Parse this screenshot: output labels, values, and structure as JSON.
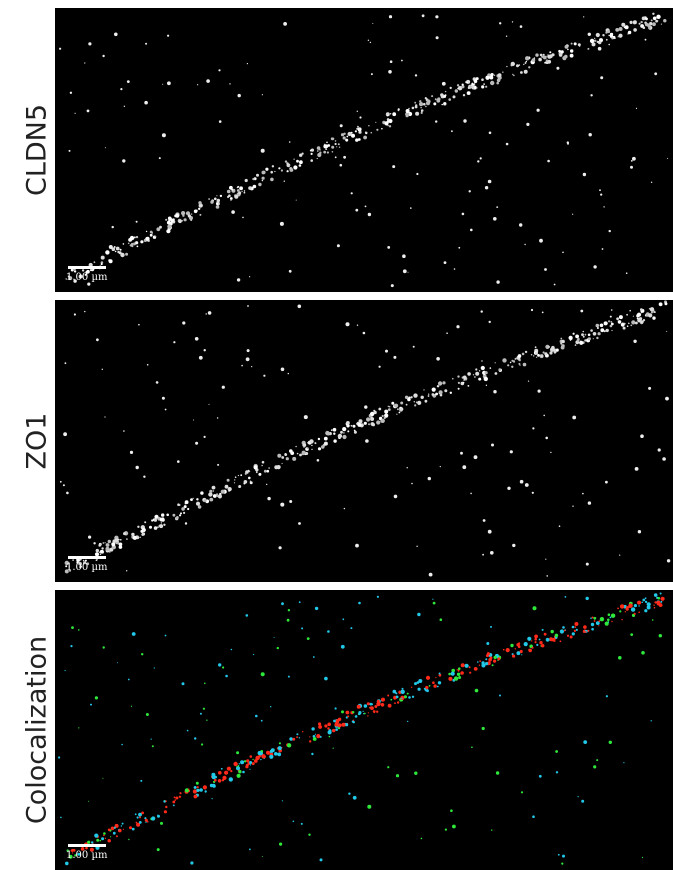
{
  "panels": [
    {
      "label": "CLDN5",
      "scale_bar": "1.00 µm"
    },
    {
      "label": "ZO1",
      "scale_bar": "1.00 µm"
    },
    {
      "label": "Colocalization",
      "scale_bar": "1.00 µm"
    }
  ]
}
